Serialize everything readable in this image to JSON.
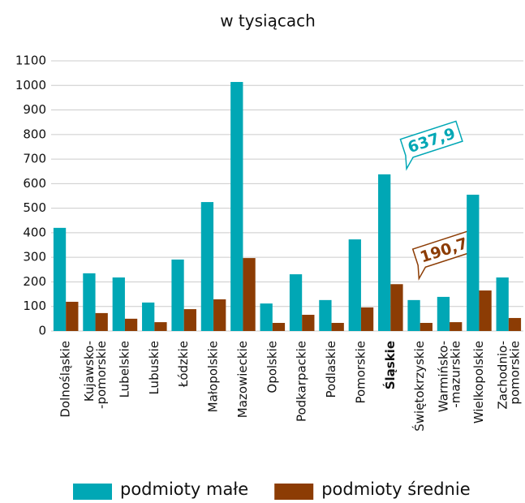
{
  "chart_data": {
    "type": "bar",
    "title": "w tysiącach",
    "categories": [
      "Dolnośląskie",
      "Kujawsko-\n-pomorskie",
      "Lubelskie",
      "Lubuskie",
      "Łódzkie",
      "Małopolskie",
      "Mazowieckie",
      "Opolskie",
      "Podkarpackie",
      "Podlaskie",
      "Pomorskie",
      "Śląskie",
      "Świętokrzyskie",
      "Warmińsko-\n-mazurskie",
      "Wielkopolskie",
      "Zachodnio-\npomorskie"
    ],
    "series": [
      {
        "name": "podmioty małe",
        "color": "#00a7b5",
        "values": [
          420,
          235,
          218,
          116,
          291,
          525,
          1014,
          112,
          231,
          126,
          373,
          637.9,
          126,
          139,
          555,
          218
        ],
        "value_labels": [
          null,
          null,
          null,
          null,
          null,
          null,
          null,
          null,
          null,
          null,
          null,
          "637,9",
          null,
          null,
          null,
          null
        ]
      },
      {
        "name": "podmioty średnie",
        "color": "#8c3c04",
        "values": [
          119,
          73,
          50,
          36,
          89,
          129,
          297,
          33,
          66,
          33,
          96,
          190.7,
          33,
          36,
          165,
          53
        ],
        "value_labels": [
          null,
          null,
          null,
          null,
          null,
          null,
          null,
          null,
          null,
          null,
          null,
          "190,7",
          null,
          null,
          null,
          null
        ]
      }
    ],
    "ylim": [
      0,
      1100
    ],
    "yticks": [
      0,
      100,
      200,
      300,
      400,
      500,
      600,
      700,
      800,
      900,
      1000,
      1100
    ],
    "grid": true
  }
}
